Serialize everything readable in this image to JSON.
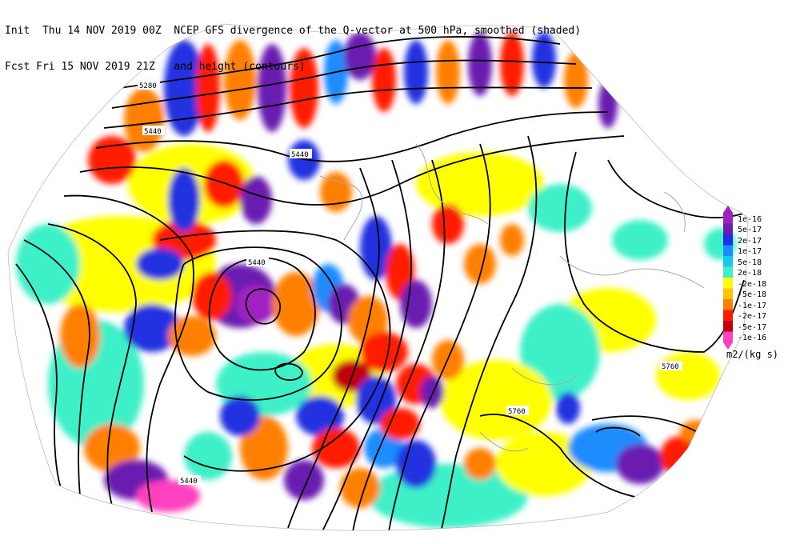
{
  "header": {
    "line1_left": "Init  Thu 14 NOV 2019 00Z",
    "line1_right": "NCEP GFS divergence of the Q-vector at 500 hPa, smoothed (shaded)",
    "line2_left": "Fcst Fri 15 NOV 2019 21Z",
    "line2_right": "and height (contours)"
  },
  "legend": {
    "labels": [
      "1e-16",
      "5e-17",
      "2e-17",
      "1e-17",
      "5e-18",
      "2e-18",
      "-2e-18",
      "-5e-18",
      "-1e-17",
      "-2e-17",
      "-5e-17",
      "-1e-16"
    ],
    "colors": [
      "#a020c0",
      "#6a1fb0",
      "#2030e0",
      "#1a8cff",
      "#17c7f0",
      "#3ef0c8",
      "#ffff00",
      "#ffc400",
      "#ff8000",
      "#ff1a00",
      "#c00010",
      "#ff40c0"
    ],
    "units": "m2/(kg s)"
  },
  "contour_labels": {
    "c1": "5280",
    "c2": "5440",
    "c3": "5440",
    "c4": "5440",
    "c5": "5440",
    "c6": "5760",
    "c7": "5760"
  },
  "palette": {
    "background": "#ffffff",
    "coast": "#a8a8a8",
    "contour": "#000000"
  }
}
